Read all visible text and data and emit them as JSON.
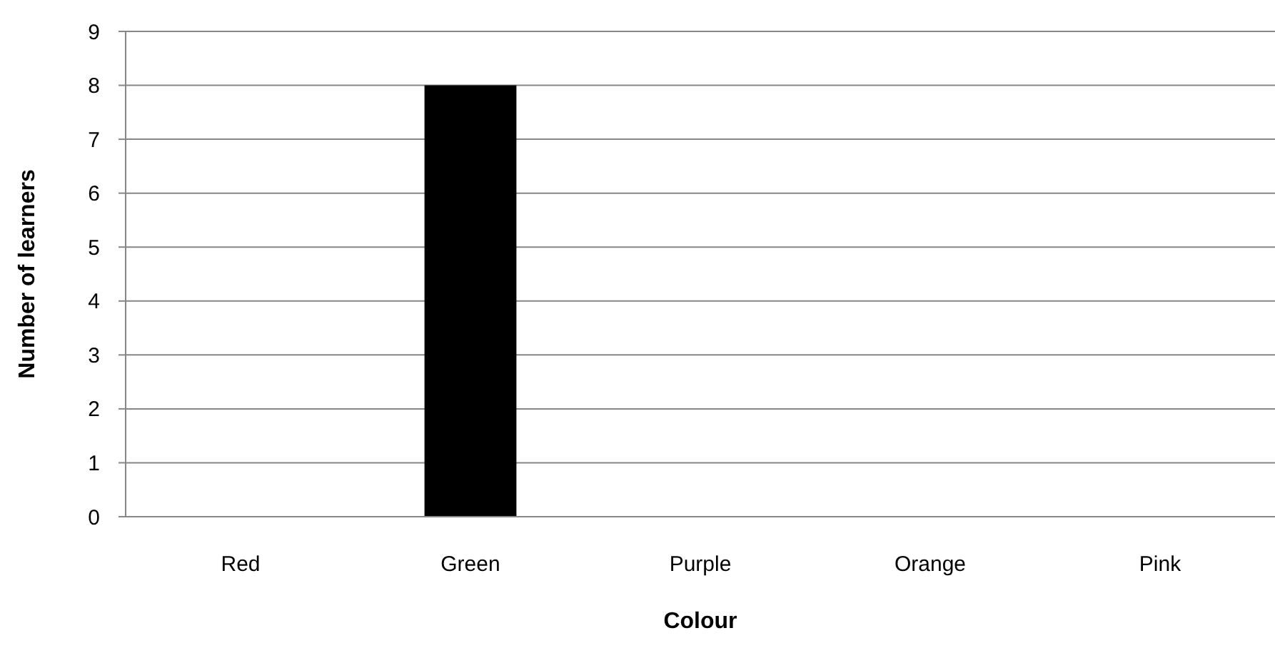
{
  "chart_data": {
    "type": "bar",
    "categories": [
      "Red",
      "Green",
      "Purple",
      "Orange",
      "Pink"
    ],
    "values": [
      0,
      8,
      0,
      0,
      0
    ],
    "color": "#000000",
    "xlabel": "Colour",
    "ylabel": "Number of learners",
    "ylim": [
      0,
      9
    ],
    "yticks": [
      0,
      1,
      2,
      3,
      4,
      5,
      6,
      7,
      8,
      9
    ],
    "grid": "y"
  }
}
